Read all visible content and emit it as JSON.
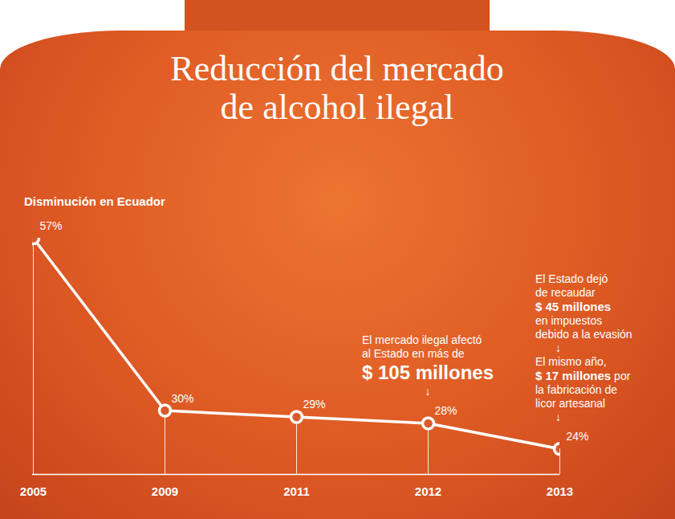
{
  "chart_data": {
    "type": "line",
    "title": "Reducción del mercado de alcohol ilegal",
    "subtitle": "Disminución en Ecuador",
    "categories": [
      "2005",
      "2009",
      "2011",
      "2012",
      "2013"
    ],
    "values": [
      57,
      30,
      29,
      28,
      24
    ],
    "value_labels": [
      "57%",
      "30%",
      "29%",
      "28%",
      "24%"
    ],
    "data_labels": true,
    "color": "#ffffff",
    "marker": "circle",
    "ylim": [
      20,
      57
    ],
    "yticks": [],
    "grid": false,
    "tick_labels": "x",
    "annotations": [
      {
        "x": "2012",
        "lines": [
          [
            {
              "text": "El mercado ilegal afectó"
            }
          ],
          [
            {
              "text": "al Estado en más de"
            }
          ],
          [
            {
              "text": "$ 105 millones",
              "style": "large"
            }
          ],
          [
            {
              "text": "↓"
            }
          ]
        ]
      },
      {
        "x": "2013",
        "lines": [
          [
            {
              "text": "El Estado dejó"
            }
          ],
          [
            {
              "text": "de recaudar"
            }
          ],
          [
            {
              "text": "$ 45 millones",
              "style": "bold"
            }
          ],
          [
            {
              "text": "en impuestos"
            }
          ],
          [
            {
              "text": "debido a la evasión"
            }
          ],
          [
            {
              "text": "↓"
            }
          ],
          [
            {
              "text": "El mismo año,"
            }
          ],
          [
            {
              "text": "$ 17 millones",
              "style": "bold"
            },
            {
              "text": " por"
            }
          ],
          [
            {
              "text": "la fabricación de"
            }
          ],
          [
            {
              "text": "licor artesanal"
            }
          ],
          [
            {
              "text": "↓"
            }
          ]
        ]
      }
    ]
  }
}
